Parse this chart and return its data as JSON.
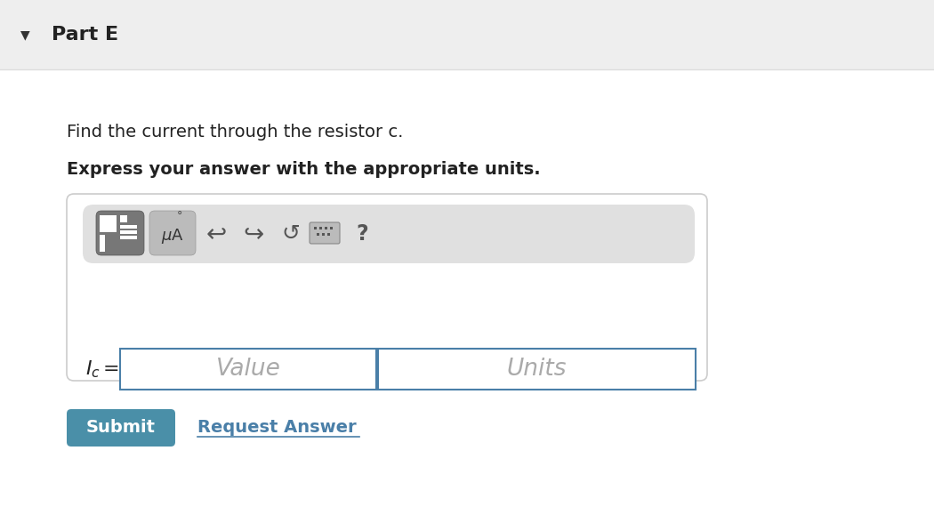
{
  "bg_color": "#f5f5f5",
  "white_bg": "#ffffff",
  "header_bg": "#eeeeee",
  "part_label": "Part E",
  "triangle": "▼",
  "instruction_normal": "Find the current through the resistor c.",
  "instruction_bold": "Express your answer with the appropriate units.",
  "placeholder_value": "Value",
  "placeholder_units": "Units",
  "submit_text": "Submit",
  "submit_bg": "#4a8fa8",
  "submit_text_color": "#ffffff",
  "request_text": "Request Answer",
  "request_color": "#4a7fa8",
  "toolbar_bg": "#e0e0e0",
  "input_border": "#4a7fa8",
  "box_border": "#cccccc",
  "placeholder_color": "#aaaaaa"
}
